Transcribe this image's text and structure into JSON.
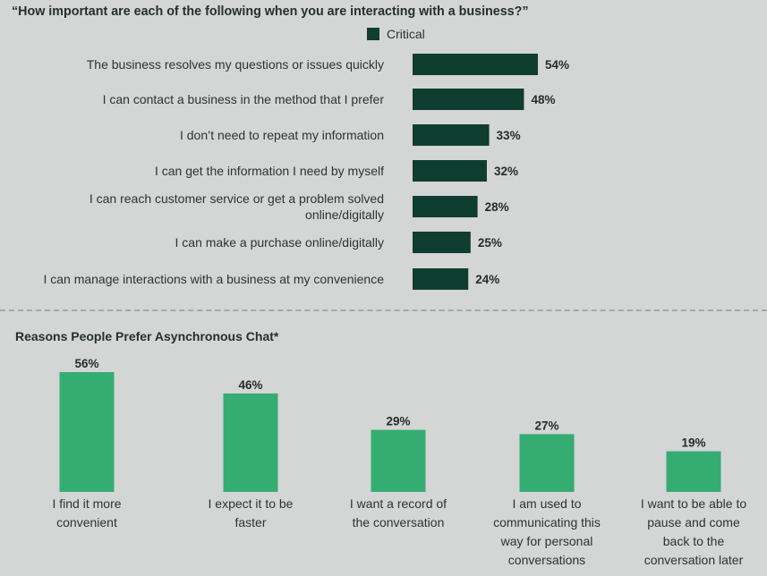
{
  "colors": {
    "background": "#d4d5d5",
    "critical_bar": "#0f3e30",
    "chat_bar": "#35ad72",
    "divider": "#a8aaab"
  },
  "chart_data": [
    {
      "type": "bar",
      "orientation": "horizontal",
      "title": "“How important are each of the following when you are interacting with a business?”",
      "legend": [
        {
          "name": "Critical",
          "color": "#0f3e30"
        }
      ],
      "categories": [
        "The business resolves my questions or issues quickly",
        "I can contact a business in the method that I prefer",
        "I don’t need to repeat my information",
        "I can get the information I need by myself",
        "I can reach customer service or get a problem solved online/digitally",
        "I can make a purchase online/digitally",
        "I can manage interactions with a business at my convenience"
      ],
      "label_lines": [
        [
          "The business resolves my questions or issues quickly"
        ],
        [
          "I can contact a business in the method that I prefer"
        ],
        [
          "I don’t need to repeat my information"
        ],
        [
          "I can get the information I need by myself"
        ],
        [
          "I can reach customer service or get a problem solved",
          "online/digitally"
        ],
        [
          "I can make a purchase online/digitally"
        ],
        [
          "I can manage interactions with a business at my convenience"
        ]
      ],
      "values": [
        54,
        48,
        33,
        32,
        28,
        25,
        24
      ],
      "value_labels": [
        "54%",
        "48%",
        "33%",
        "32%",
        "28%",
        "25%",
        "24%"
      ],
      "unit": "%",
      "xlim": [
        0,
        100
      ],
      "grid": false,
      "legend_position": "top"
    },
    {
      "type": "bar",
      "orientation": "vertical",
      "title": "Reasons People Prefer Asynchronous Chat*",
      "categories": [
        "I find it more convenient",
        "I expect it to be faster",
        "I want a record of the conversation",
        "I am used to communicating this way for personal conversations",
        "I want to be able to pause and come back to the conversation later"
      ],
      "label_lines": [
        [
          "I find it more",
          "convenient"
        ],
        [
          "I expect it to be",
          "faster"
        ],
        [
          "I want a record of",
          "the conversation"
        ],
        [
          "I am used to",
          "communicating this",
          "way for personal",
          "conversations"
        ],
        [
          "I want to be able to",
          "pause and come",
          "back to the",
          "conversation later"
        ]
      ],
      "values": [
        56,
        46,
        29,
        27,
        19
      ],
      "value_labels": [
        "56%",
        "46%",
        "29%",
        "27%",
        "19%"
      ],
      "unit": "%",
      "ylim": [
        0,
        56
      ],
      "grid": false
    }
  ]
}
